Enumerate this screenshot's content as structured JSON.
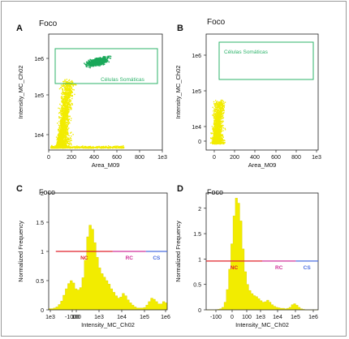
{
  "chart_data": [
    {
      "panel": "A",
      "type": "scatter",
      "title": "Foco",
      "xlabel": "Area_M09",
      "ylabel": "Intensity_MC_Ch02",
      "x_ticks": [
        "0",
        "200",
        "400",
        "600",
        "800",
        "1e3"
      ],
      "y_ticks": [
        "1e4",
        "1e5",
        "1e6"
      ],
      "x_range": [
        -80,
        1000
      ],
      "gate": {
        "label": "Células Somáticas",
        "color": "#2db36a"
      },
      "populations": [
        {
          "name": "",
          "color": "#f2ec00",
          "x_range": [
            0,
            340
          ],
          "y_range": [
            "0",
            "1e5"
          ]
        },
        {
          "name": "",
          "color": "#1aa85a",
          "x_range": [
            180,
            560
          ],
          "y_range": [
            "2e5",
            "1.2e6"
          ]
        }
      ]
    },
    {
      "panel": "B",
      "type": "scatter",
      "title": "Foco",
      "xlabel": "Area_M09",
      "ylabel": "Intensity_MC_Ch02",
      "x_ticks": [
        "0",
        "200",
        "400",
        "600",
        "800",
        "1e3"
      ],
      "y_ticks": [
        "0",
        "1e4",
        "1e5",
        "1e6"
      ],
      "x_range": [
        -80,
        1000
      ],
      "gate": {
        "label": "Células Somáticas",
        "color": "#2db36a"
      },
      "populations": [
        {
          "name": "",
          "color": "#f2ec00",
          "x_range": [
            0,
            260
          ],
          "y_range": [
            "0",
            "3e4"
          ]
        }
      ]
    },
    {
      "panel": "C",
      "type": "area",
      "title": "Foco",
      "xlabel": "Intensity_MC_Ch02",
      "ylabel": "Normalized Frequency",
      "x_ticks": [
        "1e3",
        "-1000",
        "100",
        "1e3",
        "1e4",
        "1e5",
        "1e6"
      ],
      "y_ticks": [
        "0",
        "0.5",
        "1",
        "1.5",
        "2"
      ],
      "ylim": [
        0,
        2
      ],
      "x": [
        0,
        2,
        4,
        6,
        8,
        10,
        12,
        14,
        16,
        18,
        20,
        22,
        24,
        26,
        28,
        30,
        32,
        34,
        36,
        38,
        40,
        42,
        44,
        46,
        48,
        50,
        52,
        54,
        56,
        58,
        60,
        62,
        64,
        66,
        68,
        70,
        72,
        74,
        76,
        78,
        80,
        82,
        84,
        86,
        88,
        90,
        92,
        94,
        96,
        98,
        100
      ],
      "values": [
        0.02,
        0.02,
        0.03,
        0.05,
        0.09,
        0.15,
        0.25,
        0.36,
        0.45,
        0.5,
        0.46,
        0.36,
        0.34,
        0.38,
        0.55,
        0.85,
        1.25,
        1.45,
        1.38,
        1.15,
        0.9,
        0.72,
        0.62,
        0.56,
        0.5,
        0.44,
        0.36,
        0.3,
        0.24,
        0.2,
        0.22,
        0.28,
        0.24,
        0.17,
        0.12,
        0.08,
        0.05,
        0.03,
        0.03,
        0.03,
        0.04,
        0.08,
        0.14,
        0.2,
        0.18,
        0.14,
        0.1,
        0.1,
        0.14,
        0.12,
        0.05
      ],
      "gates": [
        {
          "label": "NC",
          "color": "#e0222a",
          "x_start": 6,
          "x_end": 54
        },
        {
          "label": "RC",
          "color": "#d0309a",
          "x_start": 54,
          "x_end": 82
        },
        {
          "label": "CS",
          "color": "#4a6ee0",
          "x_start": 82,
          "x_end": 100
        }
      ],
      "gate_level": 1.0
    },
    {
      "panel": "D",
      "type": "area",
      "title": "Foco",
      "xlabel": "Intensity_MC_Ch02",
      "ylabel": "Normalized Frequency",
      "x_ticks": [
        "-100",
        "0",
        "100",
        "1e3",
        "1e4",
        "1e5",
        "1e6"
      ],
      "y_ticks": [
        "0",
        "0.5",
        "1",
        "1.5",
        "2"
      ],
      "ylim": [
        0,
        2.3
      ],
      "x": [
        0,
        2,
        4,
        6,
        8,
        10,
        12,
        14,
        16,
        18,
        20,
        22,
        24,
        26,
        28,
        30,
        32,
        34,
        36,
        38,
        40,
        42,
        44,
        46,
        48,
        50,
        52,
        54,
        56,
        58,
        60,
        62,
        64,
        66,
        68,
        70,
        72,
        74,
        76,
        78,
        80,
        82,
        84,
        86,
        88,
        90,
        92,
        94,
        96,
        98,
        100
      ],
      "values": [
        0,
        0,
        0,
        0,
        0,
        0.01,
        0.02,
        0.05,
        0.15,
        0.4,
        0.8,
        1.3,
        1.85,
        2.2,
        2.1,
        1.75,
        1.2,
        0.75,
        0.5,
        0.38,
        0.32,
        0.28,
        0.26,
        0.22,
        0.18,
        0.15,
        0.16,
        0.19,
        0.15,
        0.1,
        0.07,
        0.05,
        0.04,
        0.03,
        0.03,
        0.02,
        0.03,
        0.05,
        0.1,
        0.12,
        0.09,
        0.05,
        0.02,
        0.01,
        0,
        0,
        0,
        0,
        0,
        0,
        0
      ],
      "gates": [
        {
          "label": "NC",
          "color": "#e0222a",
          "x_start": 0,
          "x_end": 50
        },
        {
          "label": "RC",
          "color": "#d0309a",
          "x_start": 50,
          "x_end": 80
        },
        {
          "label": "CS",
          "color": "#4a6ee0",
          "x_start": 80,
          "x_end": 100
        }
      ],
      "gate_level": 0.96
    }
  ]
}
